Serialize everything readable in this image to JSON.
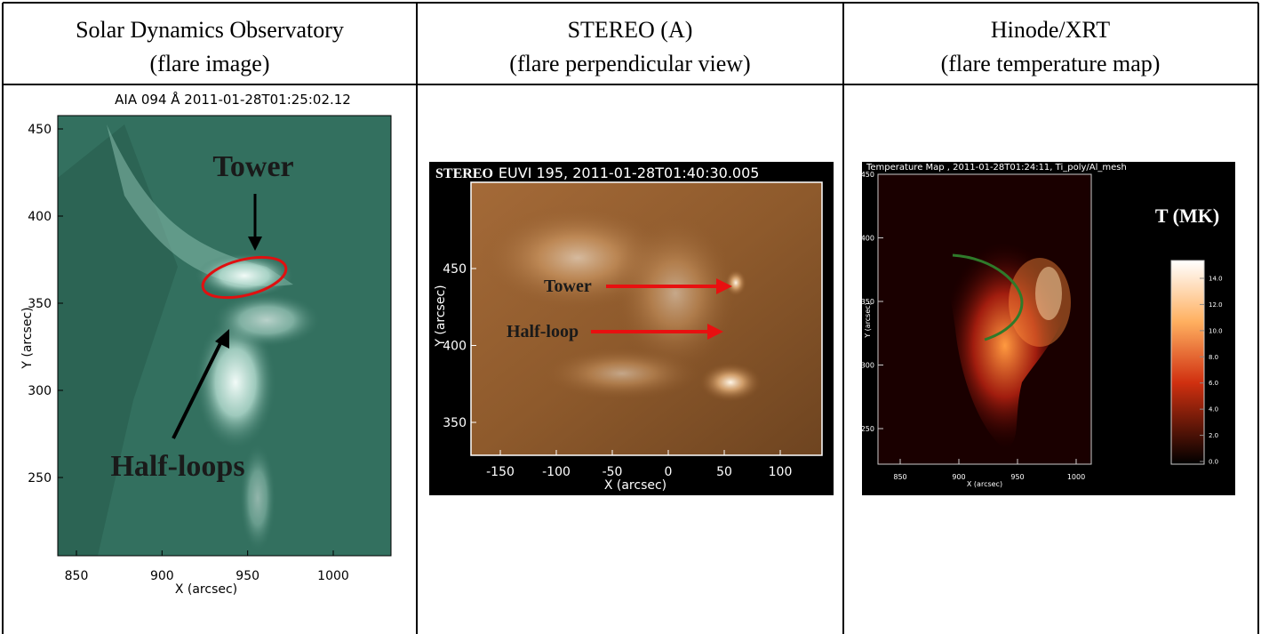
{
  "table": {
    "columns": [
      {
        "title": "Solar Dynamics Observatory",
        "subtitle": "(flare image)"
      },
      {
        "title": "STEREO (A)",
        "subtitle": "(flare perpendicular view)"
      },
      {
        "title": "Hinode/XRT",
        "subtitle": "(flare temperature map)"
      }
    ]
  },
  "panels": [
    {
      "title": "AIA 094 Å 2011-01-28T01:25:02.12",
      "ylabel": "Y (arcsec)",
      "xlabel": "X (arcsec)",
      "yticks": [
        450,
        400,
        350,
        300,
        250
      ],
      "xticks": [
        850,
        900,
        950,
        1000
      ],
      "annotations": [
        "Tower",
        "Half-loops"
      ]
    },
    {
      "title_bold": "STEREO",
      "title": "EUVI 195, 2011-01-28T01:40:30.005",
      "ylabel": "Y (arcsec)",
      "xlabel": "X (arcsec)",
      "yticks": [
        450,
        400,
        350
      ],
      "xticks": [
        -150,
        -100,
        -50,
        0,
        50,
        100
      ],
      "annotations": [
        "Tower",
        "Half-loop"
      ]
    },
    {
      "title": "Temperature Map , 2011-01-28T01:24:11, Ti_poly/Al_mesh",
      "ylabel": "Y (arcsec)",
      "xlabel": "X (arcsec)",
      "yticks": [
        450,
        400,
        350,
        300,
        250
      ],
      "xticks": [
        850,
        900,
        950,
        1000
      ],
      "colorbar_label": "T (MK)",
      "colorbar_ticks": [
        "14.0",
        "12.0",
        "10.0",
        "8.0",
        "6.0",
        "4.0",
        "2.0",
        "0.0"
      ]
    }
  ]
}
